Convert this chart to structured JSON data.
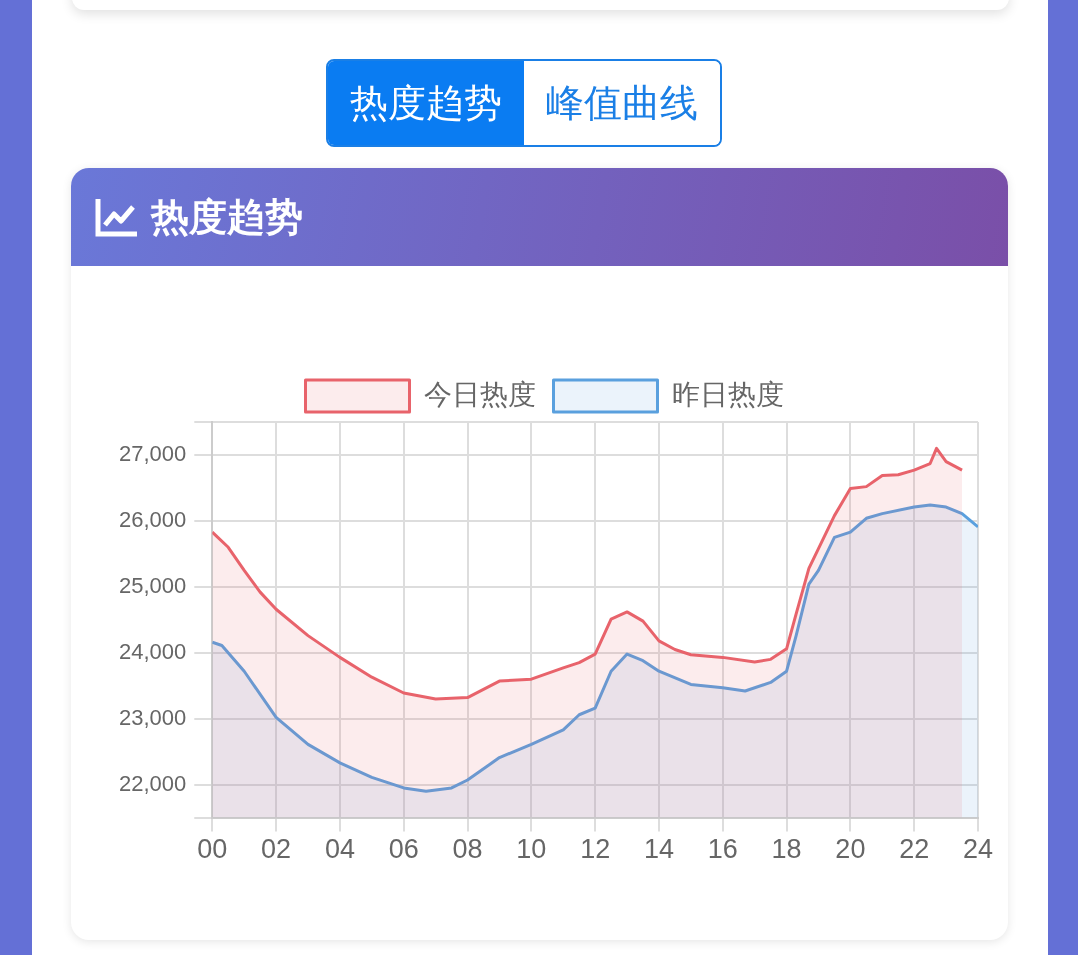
{
  "chart_data": {
    "type": "area",
    "title": "热度趋势",
    "annotations": [
      "热度趋势",
      "峰值曲线"
    ],
    "legend": "top",
    "grid": true,
    "marker": "none",
    "line_style": "solid",
    "xlim": [
      0,
      24
    ],
    "xticks": [
      {
        "value": 0,
        "label": "00"
      },
      {
        "value": 2,
        "label": "02"
      },
      {
        "value": 4,
        "label": "04"
      },
      {
        "value": 6,
        "label": "06"
      },
      {
        "value": 8,
        "label": "08"
      },
      {
        "value": 10,
        "label": "10"
      },
      {
        "value": 12,
        "label": "12"
      },
      {
        "value": 14,
        "label": "14"
      },
      {
        "value": 16,
        "label": "16"
      },
      {
        "value": 18,
        "label": "18"
      },
      {
        "value": 20,
        "label": "20"
      },
      {
        "value": 22,
        "label": "22"
      },
      {
        "value": 24,
        "label": "24"
      }
    ],
    "ylim": [
      21500,
      27500
    ],
    "yticks": [
      {
        "value": 21500,
        "label": null
      },
      {
        "value": 22000,
        "label": "22,000"
      },
      {
        "value": 23000,
        "label": "23,000"
      },
      {
        "value": 24000,
        "label": "24,000"
      },
      {
        "value": 25000,
        "label": "25,000"
      },
      {
        "value": 26000,
        "label": "26,000"
      },
      {
        "value": 27000,
        "label": "27,000"
      },
      {
        "value": 27500,
        "label": null
      }
    ],
    "series": [
      {
        "name": "今日热度",
        "color": "#e8636b",
        "x": [
          0,
          0.5,
          1,
          1.5,
          2,
          3,
          4,
          5,
          6,
          7,
          8,
          9,
          10,
          11,
          11.5,
          12,
          12.5,
          13,
          13.5,
          14,
          14.5,
          15,
          16,
          17,
          17.5,
          18,
          18.3,
          18.7,
          19,
          19.5,
          20,
          20.5,
          21,
          21.5,
          22,
          22.5,
          22.7,
          23,
          23.5
        ],
        "values": [
          25830,
          25600,
          25250,
          24920,
          24660,
          24260,
          23930,
          23630,
          23390,
          23300,
          23320,
          23570,
          23600,
          23770,
          23850,
          23980,
          24510,
          24620,
          24480,
          24180,
          24050,
          23970,
          23930,
          23860,
          23900,
          24060,
          24590,
          25280,
          25580,
          26080,
          26490,
          26520,
          26690,
          26700,
          26770,
          26870,
          27100,
          26900,
          26770
        ]
      },
      {
        "name": "昨日热度",
        "color": "#5aa0de",
        "x": [
          0,
          0.3,
          1,
          2,
          3,
          4,
          5,
          6,
          6.7,
          7.5,
          8,
          9,
          10,
          11,
          11.5,
          12,
          12.5,
          13,
          13.5,
          14,
          15,
          16,
          16.7,
          17.5,
          18,
          18.3,
          18.7,
          19,
          19.5,
          20,
          20.5,
          21,
          22,
          22.5,
          23,
          23.5,
          24
        ],
        "values": [
          24160,
          24110,
          23720,
          23020,
          22610,
          22330,
          22110,
          21950,
          21900,
          21950,
          22070,
          22410,
          22610,
          22830,
          23060,
          23160,
          23720,
          23980,
          23880,
          23720,
          23520,
          23470,
          23420,
          23550,
          23720,
          24260,
          25040,
          25250,
          25750,
          25830,
          26040,
          26110,
          26210,
          26240,
          26210,
          26110,
          25910
        ]
      }
    ]
  }
}
